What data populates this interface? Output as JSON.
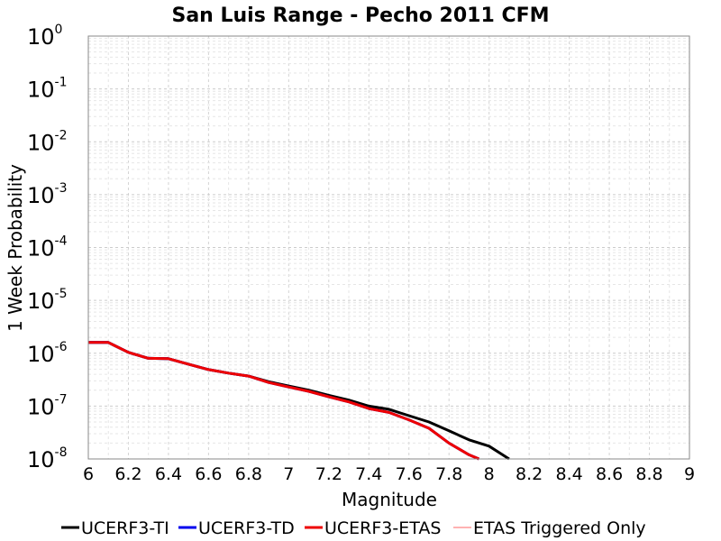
{
  "chart_data": {
    "type": "line",
    "title": "San Luis Range - Pecho 2011 CFM",
    "xlabel": "Magnitude",
    "ylabel": "1 Week Probability",
    "xlim": [
      6,
      9
    ],
    "ylim": [
      1e-08,
      1
    ],
    "yscale": "log",
    "grid": true,
    "legend_position": "bottom",
    "x_ticks": [
      "6",
      "6.2",
      "6.4",
      "6.6",
      "6.8",
      "7",
      "7.2",
      "7.4",
      "7.6",
      "7.8",
      "8",
      "8.2",
      "8.4",
      "8.6",
      "8.8",
      "9"
    ],
    "y_ticks": [
      {
        "base": "10",
        "exp": "0",
        "value": 1
      },
      {
        "base": "10",
        "exp": "-1",
        "value": 0.1
      },
      {
        "base": "10",
        "exp": "-2",
        "value": 0.01
      },
      {
        "base": "10",
        "exp": "-3",
        "value": 0.001
      },
      {
        "base": "10",
        "exp": "-4",
        "value": 0.0001
      },
      {
        "base": "10",
        "exp": "-5",
        "value": 1e-05
      },
      {
        "base": "10",
        "exp": "-6",
        "value": 1e-06
      },
      {
        "base": "10",
        "exp": "-7",
        "value": 1e-07
      },
      {
        "base": "10",
        "exp": "-8",
        "value": 1e-08
      }
    ],
    "series": [
      {
        "name": "UCERF3-TI",
        "color": "#000000",
        "width": 3,
        "x": [
          6.0,
          6.1,
          6.2,
          6.3,
          6.4,
          6.5,
          6.6,
          6.7,
          6.8,
          6.9,
          7.0,
          7.1,
          7.2,
          7.3,
          7.4,
          7.5,
          7.6,
          7.7,
          7.8,
          7.9,
          8.0,
          8.1
        ],
        "y": [
          1.6e-06,
          1.6e-06,
          1.04e-06,
          8e-07,
          7.9e-07,
          6.2e-07,
          4.9e-07,
          4.2e-07,
          3.7e-07,
          2.9e-07,
          2.4e-07,
          2e-07,
          1.6e-07,
          1.3e-07,
          1e-07,
          8.7e-08,
          6.6e-08,
          5e-08,
          3.4e-08,
          2.3e-08,
          1.75e-08,
          1e-08
        ]
      },
      {
        "name": "UCERF3-TD",
        "color": "#0000ee",
        "width": 3,
        "x": [
          6.0,
          6.1,
          6.2,
          6.3,
          6.4,
          6.5,
          6.6,
          6.7,
          6.8,
          6.9,
          7.0,
          7.1,
          7.2,
          7.3,
          7.4,
          7.5,
          7.6,
          7.7,
          7.8,
          7.9,
          7.95
        ],
        "y": [
          1.6e-06,
          1.6e-06,
          1.04e-06,
          8e-07,
          7.9e-07,
          6.2e-07,
          4.9e-07,
          4.2e-07,
          3.7e-07,
          2.8e-07,
          2.3e-07,
          1.9e-07,
          1.5e-07,
          1.2e-07,
          9e-08,
          7.6e-08,
          5.5e-08,
          3.8e-08,
          2e-08,
          1.2e-08,
          1e-08
        ]
      },
      {
        "name": "UCERF3-ETAS",
        "color": "#ee0000",
        "width": 3,
        "x": [
          6.0,
          6.1,
          6.2,
          6.3,
          6.4,
          6.5,
          6.6,
          6.7,
          6.8,
          6.9,
          7.0,
          7.1,
          7.2,
          7.3,
          7.4,
          7.5,
          7.6,
          7.7,
          7.8,
          7.9,
          7.95
        ],
        "y": [
          1.6e-06,
          1.6e-06,
          1.04e-06,
          8e-07,
          7.9e-07,
          6.2e-07,
          4.9e-07,
          4.2e-07,
          3.7e-07,
          2.8e-07,
          2.3e-07,
          1.9e-07,
          1.5e-07,
          1.2e-07,
          9e-08,
          7.6e-08,
          5.5e-08,
          3.8e-08,
          2e-08,
          1.2e-08,
          1e-08
        ]
      },
      {
        "name": "ETAS Triggered Only",
        "color": "#ff6666",
        "width": 1,
        "x": [],
        "y": []
      }
    ]
  }
}
